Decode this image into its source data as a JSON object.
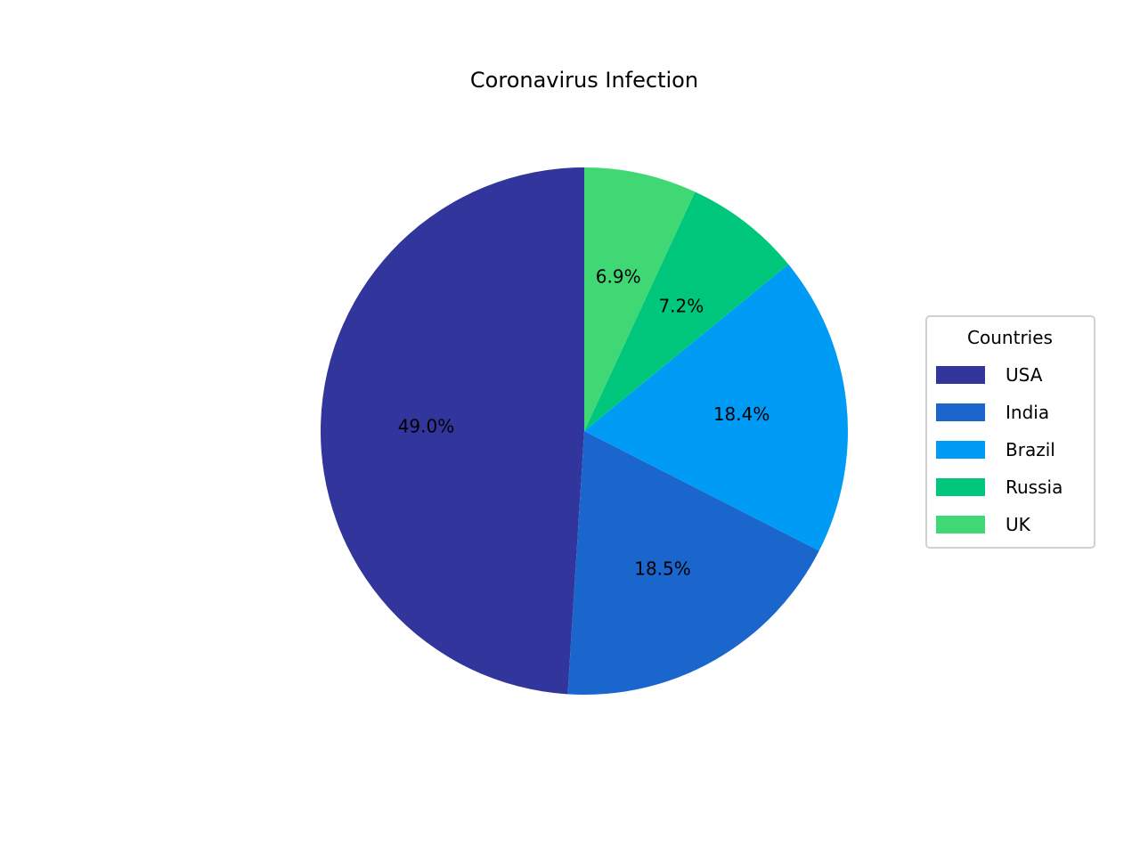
{
  "chart_data": {
    "type": "pie",
    "title": "Coronavirus Infection",
    "categories": [
      "USA",
      "India",
      "Brazil",
      "Russia",
      "UK"
    ],
    "values": [
      49.0,
      18.5,
      18.4,
      7.2,
      6.9
    ],
    "value_labels": [
      "49.0%",
      "18.5%",
      "18.4%",
      "7.2%",
      "6.9%"
    ],
    "colors": [
      "#32359B",
      "#1A66CC",
      "#009BF5",
      "#00C77B",
      "#40D875"
    ],
    "start_angle_deg": 90,
    "direction": "counterclockwise",
    "legend": {
      "title": "Countries",
      "position": "right"
    }
  }
}
